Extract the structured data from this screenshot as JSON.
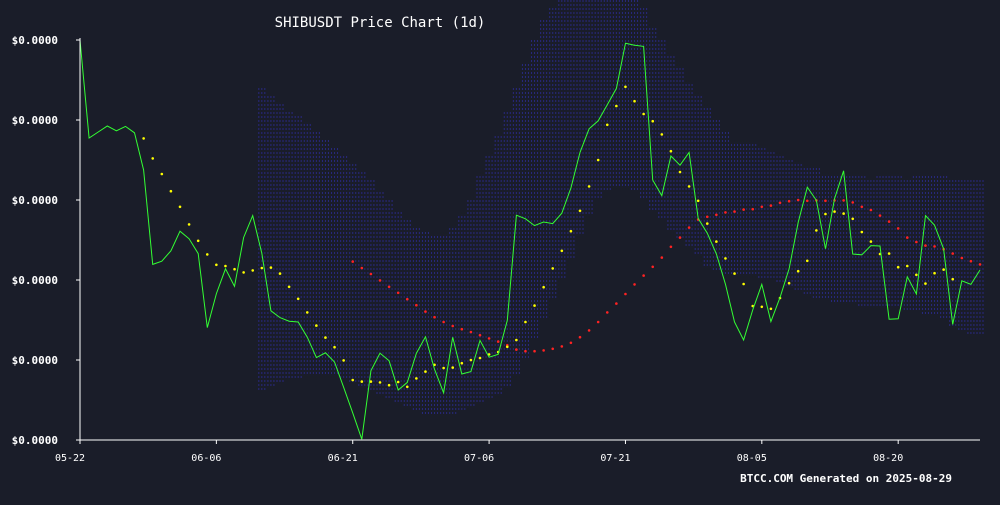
{
  "chart_data": {
    "type": "line",
    "title": "SHIBUSDT Price Chart (1d)",
    "footer": "BTCC.COM Generated on 2025-08-29",
    "xlabel": "",
    "ylabel": "",
    "x_ticks": [
      {
        "label": "05-22",
        "index": 0
      },
      {
        "label": "06-06",
        "index": 15
      },
      {
        "label": "06-21",
        "index": 30
      },
      {
        "label": "07-06",
        "index": 45
      },
      {
        "label": "07-21",
        "index": 60
      },
      {
        "label": "08-05",
        "index": 75
      },
      {
        "label": "08-20",
        "index": 90
      }
    ],
    "y_ticks": [
      "$0.0000",
      "$0.0000",
      "$0.0000",
      "$0.0000",
      "$0.0000",
      "$0.0000"
    ],
    "ylim": [
      0,
      100
    ],
    "x_count": 100,
    "colors": {
      "background": "#1a1d29",
      "price": "#33ff33",
      "fast_ma": "#ffff00",
      "slow_ma": "#ff2222",
      "band": "#2a2a88",
      "axis": "#ffffff"
    },
    "series": [
      {
        "key": "price",
        "start": 0,
        "values": [
          100,
          75.5,
          77,
          78.5,
          77.3,
          78.4,
          76.8,
          67.5,
          43.9,
          44.7,
          47.3,
          52.2,
          50.3,
          46.6,
          28.1,
          36.6,
          42.8,
          38.4,
          50.6,
          56.1,
          46.7,
          32.3,
          30.6,
          29.7,
          29.5,
          25.7,
          20.6,
          21.8,
          19.5,
          13.2,
          6.8,
          0.2,
          17.3,
          21.7,
          19.8,
          12.5,
          14.4,
          21.7,
          25.8,
          17.7,
          11.8,
          25.7,
          16.5,
          17.1,
          24.9,
          20.7,
          21.4,
          29.9,
          56.2,
          55.3,
          53.6,
          54.5,
          54.1,
          56.7,
          63,
          71.9,
          77.8,
          79.8,
          83.8,
          87.9,
          99.2,
          98.7,
          98.4,
          65,
          61.1,
          71,
          68.7,
          71.9,
          55.4,
          51.7,
          46.5,
          38.9,
          29.5,
          25,
          32.5,
          38.9,
          29.6,
          35.6,
          42.8,
          54.4,
          63.2,
          59.9,
          47.8,
          60.3,
          67.3,
          46.5,
          46.3,
          48.6,
          48.5,
          30.2,
          30.3,
          40.8,
          36.5,
          56.1,
          53.7,
          47.8,
          28.9,
          39.8,
          38.9,
          42.5
        ]
      },
      {
        "key": "fast_ma",
        "start": 7,
        "values": [
          75.4,
          70.4,
          66.5,
          62.2,
          58.3,
          53.9,
          49.8,
          46.4,
          43.8,
          43.5,
          42.7,
          41.9,
          42.4,
          43,
          43.1,
          41.6,
          38.3,
          35.3,
          31.9,
          28.6,
          25.6,
          23.2,
          19.9,
          15,
          14.6,
          14.6,
          14.4,
          13.7,
          14.5,
          13.3,
          15.4,
          17.1,
          18.8,
          18,
          18.1,
          19.2,
          20,
          20.5,
          21.4,
          22,
          23.3,
          25,
          29.5,
          33.6,
          38.2,
          42.9,
          47.3,
          52.2,
          57.3,
          63.4,
          70,
          78.8,
          83.5,
          88.3,
          84.7,
          81.5,
          79.7,
          76.4,
          72.2,
          67,
          63.4,
          59.8,
          54.1,
          49.6,
          45.4,
          41.6,
          39,
          33.5,
          33.3,
          32.8,
          35.5,
          39.2,
          42.2,
          44.8,
          52.4,
          56.5,
          57.1,
          56.6,
          55.3,
          52,
          49.6,
          46.5,
          46.6,
          43.2,
          43.5,
          41.3,
          39.1,
          41.7,
          42.6,
          40.2
        ]
      },
      {
        "key": "slow_ma",
        "start": 30,
        "values": [
          44.6,
          43,
          41.5,
          39.9,
          38.3,
          36.8,
          35.2,
          33.7,
          32.1,
          30.7,
          29.5,
          28.5,
          27.7,
          27,
          26.2,
          25.4,
          24.6,
          23.7,
          22.6,
          22.2,
          22.2,
          22.4,
          22.8,
          23.4,
          24.3,
          25.7,
          27.4,
          29.5,
          31.9,
          34.1,
          36.5,
          38.9,
          41.1,
          43.3,
          45.6,
          48.3,
          50.6,
          53.1,
          55.1,
          55.8,
          56.3,
          56.9,
          57.1,
          57.6,
          57.7,
          58.3,
          58.6,
          59.3,
          59.7,
          60,
          59.8,
          59.9,
          59.8,
          59.9,
          59.9,
          59.4,
          58.3,
          57.5,
          56.1,
          54.6,
          52.9,
          50.6,
          49.5,
          48.6,
          48.4,
          47.7,
          46.6,
          45.5,
          44.7,
          43.9
        ]
      }
    ],
    "band": {
      "start": 20,
      "upper": [
        88,
        86,
        84,
        82,
        81,
        79,
        77,
        75,
        73,
        71,
        69,
        67,
        65,
        62,
        60,
        57,
        55,
        53,
        52,
        51,
        51,
        53,
        56,
        60,
        66,
        71,
        76,
        82,
        88,
        94,
        100,
        105,
        108,
        110,
        113,
        115,
        117,
        118,
        117,
        116,
        114,
        111,
        108,
        103,
        100,
        96,
        93,
        89,
        86,
        83,
        80,
        77,
        74,
        74,
        74,
        73,
        72,
        71,
        70,
        69,
        68,
        68,
        66,
        66,
        66,
        66,
        66,
        65,
        66,
        66,
        66,
        65,
        66,
        66,
        66,
        66,
        65,
        65,
        65,
        65
      ],
      "lower": [
        12,
        13,
        14,
        15,
        15,
        16,
        16,
        16,
        16,
        15,
        14,
        13,
        12,
        11,
        10,
        9,
        8,
        7,
        6,
        6,
        6,
        6,
        7,
        8,
        9,
        10,
        11,
        13,
        16,
        20,
        25,
        30,
        35,
        40,
        45,
        51,
        56,
        60,
        62,
        63,
        63,
        62,
        60,
        57,
        55,
        52,
        50,
        48,
        46,
        43,
        42,
        41,
        41,
        41,
        41,
        40,
        40,
        39,
        38,
        37,
        36,
        35,
        35,
        34,
        34,
        34,
        33,
        33,
        33,
        33,
        33,
        32,
        32,
        31,
        31,
        30,
        28,
        27,
        26,
        26
      ]
    }
  }
}
